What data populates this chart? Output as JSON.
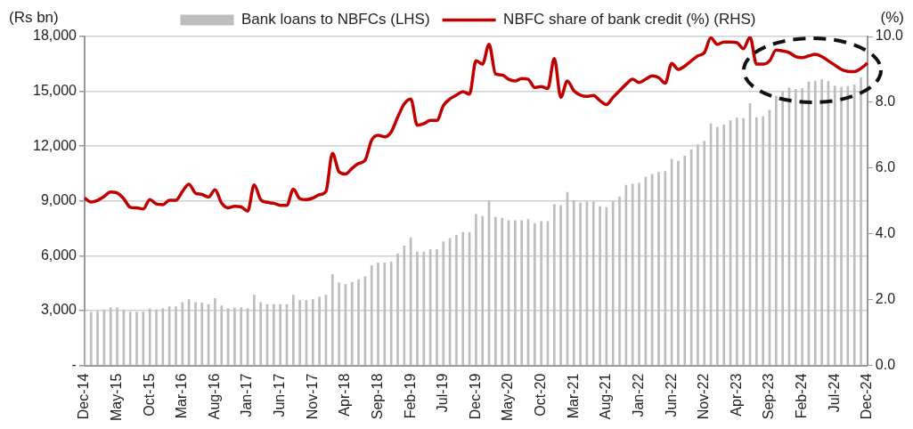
{
  "chart_data": {
    "type": "bar",
    "ylabel": "(Rs bn)",
    "y2label": "(%)",
    "categories": [
      "Dec-14",
      null,
      null,
      null,
      null,
      "May-15",
      null,
      null,
      null,
      null,
      "Oct-15",
      null,
      null,
      null,
      null,
      "Mar-16",
      null,
      null,
      null,
      null,
      "Aug-16",
      null,
      null,
      null,
      null,
      "Jan-17",
      null,
      null,
      null,
      null,
      "Jun-17",
      null,
      null,
      null,
      null,
      "Nov-17",
      null,
      null,
      null,
      null,
      "Apr-18",
      null,
      null,
      null,
      null,
      "Sep-18",
      null,
      null,
      null,
      null,
      "Feb-19",
      null,
      null,
      null,
      null,
      "Jul-19",
      null,
      null,
      null,
      null,
      "Dec-19",
      null,
      null,
      null,
      null,
      "May-20",
      null,
      null,
      null,
      null,
      "Oct-20",
      null,
      null,
      null,
      null,
      "Mar-21",
      null,
      null,
      null,
      null,
      "Aug-21",
      null,
      null,
      null,
      null,
      "Jan-22",
      null,
      null,
      null,
      null,
      "Jun-22",
      null,
      null,
      null,
      null,
      "Nov-22",
      null,
      null,
      null,
      null,
      "Apr-23",
      null,
      null,
      null,
      null,
      "Sep-23",
      null,
      null,
      null,
      null,
      "Feb-24",
      null,
      null,
      null,
      null,
      "Jul-24",
      null,
      null,
      null,
      null,
      "Dec-24"
    ],
    "series": [
      {
        "name": "Bank loans to NBFCs (LHS)",
        "color": "#bdbdbd",
        "values": [
          2950,
          2910,
          2960,
          3050,
          3160,
          3160,
          3050,
          2930,
          2930,
          2930,
          3110,
          3050,
          3110,
          3220,
          3220,
          3450,
          3610,
          3450,
          3420,
          3340,
          3670,
          3270,
          3110,
          3160,
          3160,
          3110,
          3850,
          3450,
          3340,
          3340,
          3340,
          3340,
          3850,
          3560,
          3560,
          3610,
          3740,
          3850,
          4970,
          4520,
          4440,
          4550,
          4700,
          4860,
          5460,
          5620,
          5620,
          5670,
          6110,
          6540,
          6990,
          6210,
          6210,
          6340,
          6340,
          6770,
          6950,
          7120,
          7280,
          7280,
          8270,
          8170,
          9030,
          8110,
          8060,
          7930,
          7930,
          7930,
          7990,
          7770,
          7880,
          7880,
          8820,
          8760,
          9470,
          9030,
          8890,
          8950,
          8950,
          8690,
          8650,
          8960,
          9230,
          9860,
          9920,
          9970,
          10300,
          10460,
          10570,
          10620,
          11290,
          11180,
          11460,
          11800,
          12080,
          12280,
          13220,
          13040,
          13170,
          13400,
          13540,
          13520,
          14330,
          13560,
          13630,
          13970,
          14750,
          14980,
          15200,
          15110,
          15160,
          15510,
          15560,
          15630,
          15540,
          15290,
          15220,
          15270,
          15360,
          15740,
          null
        ]
      },
      {
        "name": "NBFC share of bank credit (%) (RHS)",
        "type": "line",
        "axis": "y2",
        "color": "#c00000",
        "values": [
          5.09,
          4.97,
          5.02,
          5.14,
          5.27,
          5.24,
          5.07,
          4.81,
          4.79,
          4.76,
          5.04,
          4.91,
          4.89,
          5.02,
          5.02,
          5.29,
          5.51,
          5.24,
          5.2,
          5.12,
          5.34,
          4.94,
          4.79,
          4.84,
          4.82,
          4.69,
          5.49,
          5.04,
          4.96,
          4.93,
          4.87,
          4.87,
          5.36,
          5.07,
          5.04,
          5.09,
          5.19,
          5.29,
          6.45,
          5.89,
          5.82,
          5.99,
          6.14,
          6.24,
          6.85,
          7.0,
          6.95,
          7.1,
          7.55,
          7.95,
          8.1,
          7.3,
          7.35,
          7.45,
          7.45,
          7.9,
          8.1,
          8.22,
          8.32,
          8.25,
          9.26,
          9.16,
          9.76,
          8.86,
          8.83,
          8.7,
          8.65,
          8.72,
          8.7,
          8.45,
          8.48,
          8.42,
          9.33,
          8.15,
          8.65,
          8.35,
          8.22,
          8.18,
          8.21,
          8.05,
          7.93,
          8.15,
          8.35,
          8.55,
          8.7,
          8.6,
          8.7,
          8.8,
          8.75,
          8.58,
          9.18,
          9.0,
          9.1,
          9.26,
          9.41,
          9.51,
          9.96,
          9.76,
          9.83,
          9.83,
          9.81,
          9.63,
          9.98,
          9.16,
          9.16,
          9.26,
          9.59,
          9.56,
          9.51,
          9.39,
          9.36,
          9.41,
          9.46,
          9.39,
          9.26,
          9.13,
          9.0,
          8.94,
          8.93,
          9.03,
          9.19
        ]
      }
    ],
    "ylim": [
      0,
      18000
    ],
    "yticks": [
      {
        "value": 0,
        "label": "-"
      },
      {
        "value": 3000,
        "label": "3,000"
      },
      {
        "value": 6000,
        "label": "6,000"
      },
      {
        "value": 9000,
        "label": "9,000"
      },
      {
        "value": 12000,
        "label": "12,000"
      },
      {
        "value": 15000,
        "label": "15,000"
      },
      {
        "value": 18000,
        "label": "18,000"
      }
    ],
    "y2lim": [
      0,
      10
    ],
    "y2ticks": [
      {
        "value": 0,
        "label": "0.0"
      },
      {
        "value": 2,
        "label": "2.0"
      },
      {
        "value": 4,
        "label": "4.0"
      },
      {
        "value": 6,
        "label": "6.0"
      },
      {
        "value": 8,
        "label": "8.0"
      },
      {
        "value": 10,
        "label": "10.0"
      }
    ],
    "grid": "y",
    "legend": "top",
    "marker": "none",
    "line_style": "solid"
  }
}
